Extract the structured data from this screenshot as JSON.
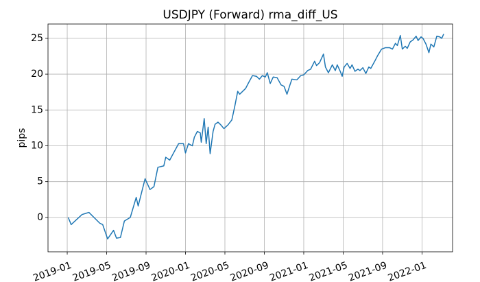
{
  "chart_data": {
    "type": "line",
    "title": "USDJPY (Forward)  rma_diff_US",
    "ylabel": "pips",
    "grid": true,
    "xlim": [
      -1.95,
      39.1
    ],
    "ylim": [
      -4.8,
      27.0
    ],
    "xticks": [
      {
        "value": 0,
        "label": "2019-01"
      },
      {
        "value": 4,
        "label": "2019-05"
      },
      {
        "value": 8,
        "label": "2019-09"
      },
      {
        "value": 12,
        "label": "2020-01"
      },
      {
        "value": 16,
        "label": "2020-05"
      },
      {
        "value": 20,
        "label": "2020-09"
      },
      {
        "value": 24,
        "label": "2021-01"
      },
      {
        "value": 28,
        "label": "2021-05"
      },
      {
        "value": 32,
        "label": "2021-09"
      },
      {
        "value": 36,
        "label": "2022-01"
      }
    ],
    "yticks": [
      0,
      5,
      10,
      15,
      20,
      25
    ],
    "x": [
      0.1,
      0.4,
      1.5,
      2.2,
      3.3,
      3.6,
      4.1,
      4.7,
      5.0,
      5.4,
      5.8,
      6.4,
      7.0,
      7.2,
      7.9,
      8.4,
      8.8,
      9.2,
      9.8,
      10.0,
      10.4,
      11.3,
      11.8,
      12.0,
      12.3,
      12.7,
      12.9,
      13.2,
      13.5,
      13.6,
      13.9,
      14.1,
      14.3,
      14.5,
      14.8,
      15.0,
      15.3,
      15.6,
      15.9,
      16.3,
      16.7,
      17.0,
      17.3,
      17.5,
      18.1,
      18.4,
      18.8,
      19.2,
      19.5,
      19.8,
      20.1,
      20.3,
      20.6,
      20.9,
      21.3,
      21.7,
      22.0,
      22.3,
      22.6,
      22.8,
      23.3,
      23.7,
      24.0,
      24.4,
      24.7,
      25.1,
      25.3,
      25.6,
      26.0,
      26.2,
      26.5,
      26.9,
      27.2,
      27.4,
      27.7,
      27.9,
      28.1,
      28.4,
      28.7,
      28.9,
      29.2,
      29.5,
      29.7,
      30.0,
      30.3,
      30.6,
      30.8,
      31.2,
      31.5,
      31.9,
      32.3,
      32.7,
      33.0,
      33.3,
      33.5,
      33.8,
      34.0,
      34.3,
      34.5,
      34.8,
      35.1,
      35.4,
      35.6,
      35.9,
      36.1,
      36.4,
      36.7,
      36.9,
      37.2,
      37.5,
      37.8,
      38.0,
      38.2
    ],
    "series": [
      {
        "color": "#1f77b4",
        "values": [
          0,
          -1.0,
          0.4,
          0.7,
          -0.8,
          -1.0,
          -3.0,
          -1.8,
          -2.9,
          -2.8,
          -0.5,
          0,
          2.8,
          1.6,
          5.4,
          3.9,
          4.3,
          7.0,
          7.2,
          8.4,
          8.0,
          10.3,
          10.3,
          9.0,
          10.3,
          10.0,
          11.2,
          12.0,
          11.8,
          10.5,
          13.8,
          10.3,
          12.6,
          8.9,
          12.0,
          13.0,
          13.3,
          12.9,
          12.4,
          12.9,
          13.6,
          15.5,
          17.6,
          17.2,
          18.0,
          18.8,
          19.8,
          19.7,
          19.3,
          19.8,
          19.6,
          20.2,
          18.7,
          19.6,
          19.5,
          18.5,
          18.3,
          17.2,
          18.5,
          19.3,
          19.2,
          19.8,
          19.9,
          20.5,
          20.7,
          21.8,
          21.2,
          21.6,
          22.8,
          21.0,
          20.2,
          21.3,
          20.5,
          21.3,
          20.4,
          19.7,
          21.0,
          21.5,
          20.8,
          21.3,
          20.4,
          20.7,
          20.5,
          20.9,
          20.1,
          21.0,
          20.8,
          21.8,
          22.6,
          23.5,
          23.7,
          23.7,
          23.5,
          24.3,
          24.0,
          25.4,
          23.5,
          23.9,
          23.6,
          24.5,
          24.8,
          25.3,
          24.7,
          25.2,
          25.0,
          24.2,
          23.0,
          24.2,
          23.8,
          25.3,
          25.2,
          25.0,
          25.6
        ]
      }
    ]
  }
}
